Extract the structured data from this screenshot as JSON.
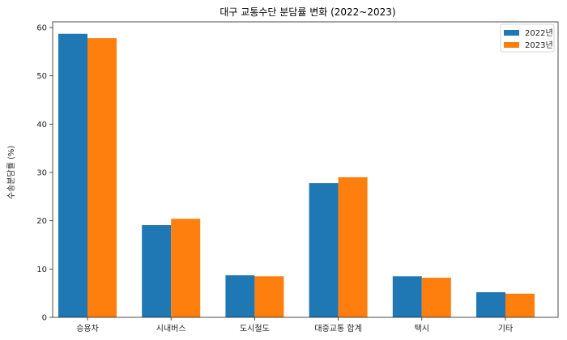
{
  "chart_data": {
    "type": "bar",
    "title": "대구 교통수단 분담률 변화 (2022~2023)",
    "xlabel": "",
    "ylabel": "수송분담률 (%)",
    "ylim": [
      0,
      60
    ],
    "yticks": [
      0,
      10,
      20,
      30,
      40,
      50,
      60
    ],
    "grid": false,
    "legend_position": "upper right",
    "categories": [
      "승용차",
      "시내버스",
      "도시철도",
      "대중교통 합계",
      "택시",
      "기타"
    ],
    "series": [
      {
        "name": "2022년",
        "color": "#1f77b4",
        "values": [
          58.7,
          19.1,
          8.7,
          27.8,
          8.5,
          5.2
        ]
      },
      {
        "name": "2023년",
        "color": "#ff7f0e",
        "values": [
          57.8,
          20.4,
          8.5,
          29.0,
          8.2,
          4.9
        ]
      }
    ]
  }
}
